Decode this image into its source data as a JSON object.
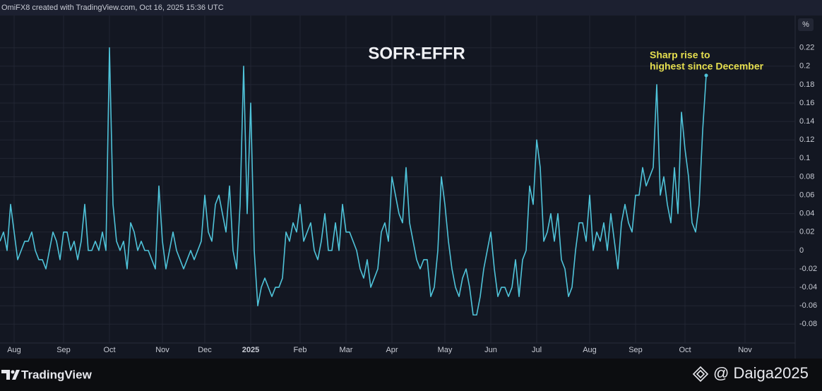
{
  "header": {
    "credit": "OmiFX8 created with TradingView.com, Oct 16, 2025 15:36 UTC"
  },
  "footer": {
    "brand": "TradingView",
    "watermark": "@ Daiga2025"
  },
  "chart_data": {
    "type": "line",
    "title": "SOFR-EFFR",
    "y_unit": "%",
    "annotation": [
      "Sharp rise to",
      "highest since December"
    ],
    "color": "#4fc3d9",
    "annotation_color": "#e6df4f",
    "grid": true,
    "ylim": [
      -0.115,
      0.255
    ],
    "yticks": [
      0.22,
      0.2,
      0.18,
      0.16,
      0.14,
      0.12,
      0.1,
      0.08,
      0.06,
      0.04,
      0.02,
      0,
      -0.02,
      -0.04,
      -0.06,
      -0.08
    ],
    "categories": [
      null,
      null,
      null,
      null,
      "Aug",
      null,
      null,
      null,
      null,
      null,
      null,
      null,
      null,
      null,
      null,
      null,
      null,
      null,
      "Sep",
      null,
      null,
      null,
      null,
      null,
      null,
      null,
      null,
      null,
      null,
      null,
      null,
      "Oct",
      null,
      null,
      null,
      null,
      null,
      null,
      null,
      null,
      null,
      null,
      null,
      null,
      null,
      null,
      "Nov",
      null,
      null,
      null,
      null,
      null,
      null,
      null,
      null,
      null,
      null,
      null,
      "Dec",
      null,
      null,
      null,
      null,
      null,
      null,
      null,
      null,
      null,
      null,
      null,
      null,
      "2025",
      null,
      null,
      null,
      null,
      null,
      null,
      null,
      null,
      null,
      null,
      null,
      null,
      null,
      "Feb",
      null,
      null,
      null,
      null,
      null,
      null,
      null,
      null,
      null,
      null,
      null,
      null,
      "Mar",
      null,
      null,
      null,
      null,
      null,
      null,
      null,
      null,
      null,
      null,
      null,
      null,
      "Apr",
      null,
      null,
      null,
      null,
      null,
      null,
      null,
      null,
      null,
      null,
      null,
      null,
      null,
      null,
      "May",
      null,
      null,
      null,
      null,
      null,
      null,
      null,
      null,
      null,
      null,
      null,
      null,
      "Jun",
      null,
      null,
      null,
      null,
      null,
      null,
      null,
      null,
      null,
      null,
      null,
      null,
      "Jul",
      null,
      null,
      null,
      null,
      null,
      null,
      null,
      null,
      null,
      null,
      null,
      null,
      null,
      null,
      "Aug",
      null,
      null,
      null,
      null,
      null,
      null,
      null,
      null,
      null,
      null,
      null,
      null,
      "Sep",
      null,
      null,
      null,
      null,
      null,
      null,
      null,
      null,
      null,
      null,
      null,
      null,
      null,
      "Oct",
      null,
      null,
      null,
      null,
      null,
      null,
      null,
      null,
      null,
      null,
      null,
      null,
      null,
      null,
      null,
      null,
      "Nov"
    ],
    "values": [
      0.01,
      0.02,
      0.0,
      0.05,
      0.02,
      -0.01,
      0.0,
      0.01,
      0.01,
      0.02,
      0.0,
      -0.01,
      -0.01,
      -0.02,
      0.0,
      0.02,
      0.01,
      -0.01,
      0.02,
      0.02,
      0.0,
      0.01,
      -0.01,
      0.01,
      0.05,
      0.0,
      0.0,
      0.01,
      0.0,
      0.02,
      0.0,
      0.22,
      0.05,
      0.01,
      0.0,
      0.01,
      -0.02,
      0.03,
      0.02,
      0.0,
      0.01,
      0.0,
      0.0,
      -0.01,
      -0.02,
      0.07,
      0.01,
      -0.02,
      0.0,
      0.02,
      0.0,
      -0.01,
      -0.02,
      -0.01,
      0.0,
      -0.01,
      0.0,
      0.01,
      0.06,
      0.02,
      0.01,
      0.05,
      0.06,
      0.04,
      0.02,
      0.07,
      0.0,
      -0.02,
      0.05,
      0.2,
      0.04,
      0.16,
      0.0,
      -0.06,
      -0.04,
      -0.03,
      -0.04,
      -0.05,
      -0.04,
      -0.04,
      -0.03,
      0.02,
      0.01,
      0.03,
      0.02,
      0.05,
      0.01,
      0.02,
      0.03,
      0.0,
      -0.01,
      0.01,
      0.04,
      0.0,
      0.0,
      0.03,
      0.0,
      0.05,
      0.02,
      0.02,
      0.01,
      0.0,
      -0.02,
      -0.03,
      -0.01,
      -0.04,
      -0.03,
      -0.02,
      0.02,
      0.03,
      0.01,
      0.08,
      0.06,
      0.04,
      0.03,
      0.09,
      0.03,
      0.01,
      -0.01,
      -0.02,
      -0.01,
      -0.01,
      -0.05,
      -0.04,
      0.0,
      0.08,
      0.05,
      0.01,
      -0.02,
      -0.04,
      -0.05,
      -0.03,
      -0.02,
      -0.04,
      -0.07,
      -0.07,
      -0.05,
      -0.02,
      0.0,
      0.02,
      -0.02,
      -0.05,
      -0.04,
      -0.04,
      -0.05,
      -0.04,
      -0.01,
      -0.05,
      -0.01,
      0.0,
      0.07,
      0.05,
      0.12,
      0.09,
      0.01,
      0.02,
      0.04,
      0.01,
      0.04,
      -0.01,
      -0.02,
      -0.05,
      -0.04,
      0.0,
      0.03,
      0.03,
      0.01,
      0.06,
      0.0,
      0.02,
      0.01,
      0.03,
      0.0,
      0.04,
      0.01,
      -0.02,
      0.03,
      0.05,
      0.03,
      0.02,
      0.06,
      0.06,
      0.09,
      0.07,
      0.08,
      0.09,
      0.18,
      0.06,
      0.08,
      0.05,
      0.03,
      0.09,
      0.04,
      0.15,
      0.11,
      0.08,
      0.03,
      0.02,
      0.05,
      0.13,
      0.19,
      null,
      null,
      null,
      null,
      null,
      null,
      null,
      null,
      null,
      null,
      null
    ]
  }
}
